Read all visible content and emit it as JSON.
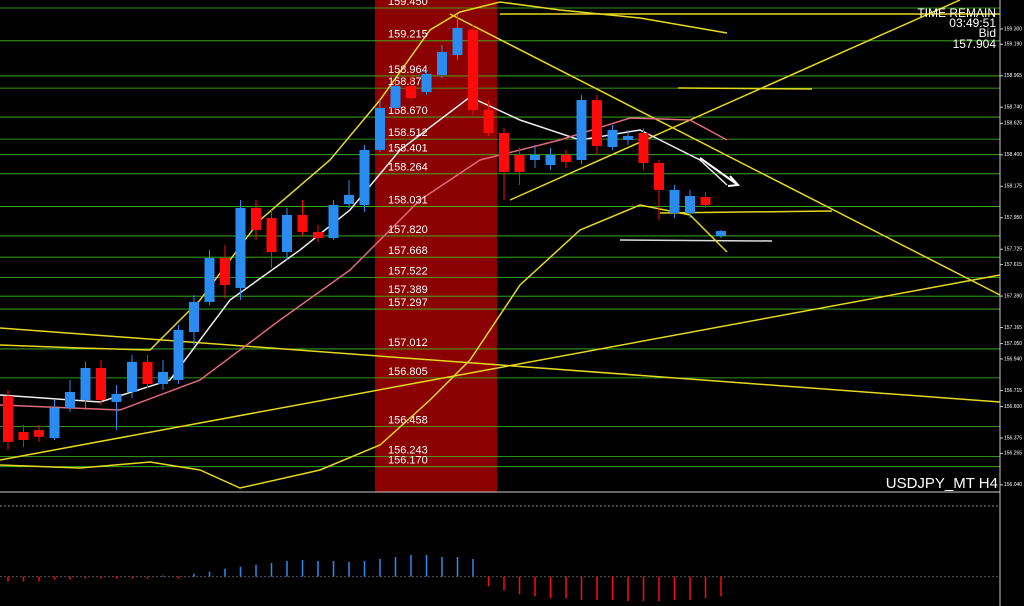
{
  "chart_data": {
    "type": "candlestick",
    "symbol_label": "USDJPY_MT H4",
    "info": [
      "TIME REMAIN",
      "03:49:51",
      "Bid",
      "157.904"
    ],
    "colors": {
      "up": "#2a8cf0",
      "down": "#ff0a0a",
      "level": "#3fbf1f"
    },
    "ylim": [
      155.989,
      159.507
    ],
    "yticks": [
      {
        "value": 159.3,
        "label": "159.300"
      },
      {
        "value": 159.19,
        "label": "159.190"
      },
      {
        "value": 158.965,
        "label": "158.965"
      },
      {
        "value": 158.74,
        "label": "158.740"
      },
      {
        "value": 158.625,
        "label": "158.625"
      },
      {
        "value": 158.4,
        "label": "158.400"
      },
      {
        "value": 158.175,
        "label": "158.175"
      },
      {
        "value": 157.95,
        "label": "157.950"
      },
      {
        "value": 157.725,
        "label": "157.725"
      },
      {
        "value": 157.615,
        "label": "157.615"
      },
      {
        "value": 157.39,
        "label": "157.390"
      },
      {
        "value": 157.165,
        "label": "157.165"
      },
      {
        "value": 157.05,
        "label": "157.050"
      },
      {
        "value": 156.94,
        "label": "156.940"
      },
      {
        "value": 156.715,
        "label": "156.715"
      },
      {
        "value": 156.6,
        "label": "156.600"
      },
      {
        "value": 156.375,
        "label": "156.375"
      },
      {
        "value": 156.265,
        "label": "156.265"
      },
      {
        "value": 156.04,
        "label": "156.040"
      }
    ],
    "levels": [
      {
        "value": 159.45,
        "label": "159.450"
      },
      {
        "value": 159.215,
        "label": "159.215"
      },
      {
        "value": 158.964,
        "label": "158.964"
      },
      {
        "value": 158.877,
        "label": "158.877"
      },
      {
        "value": 158.67,
        "label": "158.670"
      },
      {
        "value": 158.512,
        "label": "158.512"
      },
      {
        "value": 158.401,
        "label": "158.401"
      },
      {
        "value": 158.264,
        "label": "158.264"
      },
      {
        "value": 158.031,
        "label": "158.031"
      },
      {
        "value": 157.82,
        "label": "157.820"
      },
      {
        "value": 157.668,
        "label": "157.668"
      },
      {
        "value": 157.522,
        "label": "157.522"
      },
      {
        "value": 157.389,
        "label": "157.389"
      },
      {
        "value": 157.297,
        "label": "157.297"
      },
      {
        "value": 157.012,
        "label": "157.012"
      },
      {
        "value": 156.805,
        "label": "156.805"
      },
      {
        "value": 156.458,
        "label": "156.458"
      },
      {
        "value": 156.243,
        "label": "156.243"
      },
      {
        "value": 156.17,
        "label": "156.170"
      }
    ],
    "open": [
      156.676,
      156.418,
      156.432,
      156.375,
      156.59,
      156.647,
      156.876,
      156.633,
      156.704,
      156.919,
      156.761,
      156.79,
      157.133,
      157.348,
      157.662,
      157.448,
      158.02,
      157.948,
      157.705,
      157.97,
      157.848,
      157.805,
      158.048,
      158.041,
      158.435,
      158.735,
      158.892,
      158.849,
      158.971,
      159.114,
      159.293,
      158.721,
      158.556,
      158.399,
      158.363,
      158.327,
      158.399,
      158.363,
      158.792,
      158.456,
      158.506,
      158.556,
      158.342,
      157.984,
      157.984,
      158.098,
      157.82
    ],
    "high": [
      156.719,
      156.468,
      156.468,
      156.647,
      156.79,
      156.919,
      156.933,
      156.754,
      156.969,
      156.969,
      156.933,
      157.183,
      157.398,
      157.72,
      157.755,
      158.077,
      158.077,
      158.006,
      158.02,
      158.077,
      157.898,
      158.077,
      158.22,
      158.47,
      158.792,
      158.935,
      158.971,
      159.007,
      159.185,
      159.4,
      159.328,
      158.792,
      158.592,
      158.449,
      158.47,
      158.449,
      158.435,
      158.828,
      158.828,
      158.613,
      158.578,
      158.592,
      158.363,
      158.184,
      158.149,
      158.134,
      157.863
    ],
    "low": [
      156.29,
      156.311,
      156.347,
      156.361,
      156.561,
      156.576,
      156.611,
      156.432,
      156.661,
      156.733,
      156.719,
      156.761,
      157.04,
      157.326,
      157.376,
      157.362,
      157.791,
      157.591,
      157.648,
      157.82,
      157.777,
      157.791,
      158.02,
      157.991,
      158.42,
      158.706,
      158.792,
      158.828,
      158.949,
      159.078,
      158.685,
      158.535,
      158.077,
      158.184,
      158.306,
      158.292,
      158.306,
      158.334,
      158.399,
      158.435,
      158.47,
      158.292,
      157.934,
      157.948,
      157.948,
      158.02,
      157.805
    ],
    "close": [
      156.347,
      156.361,
      156.383,
      156.59,
      156.704,
      156.876,
      156.647,
      156.69,
      156.919,
      156.761,
      156.847,
      157.148,
      157.348,
      157.662,
      157.469,
      158.02,
      157.863,
      157.705,
      157.97,
      157.848,
      157.805,
      158.041,
      158.113,
      158.435,
      158.735,
      158.892,
      158.806,
      158.978,
      159.135,
      159.307,
      158.721,
      158.556,
      158.277,
      158.277,
      158.399,
      158.399,
      158.349,
      158.792,
      158.463,
      158.578,
      158.535,
      158.342,
      158.149,
      158.149,
      158.106,
      158.041,
      157.855
    ],
    "indicator": {
      "ylim": [
        -30,
        70
      ],
      "values": [
        -5,
        -5,
        -5,
        -3,
        -3,
        -2,
        -2,
        -2,
        -2,
        -2,
        1,
        -2,
        3,
        5,
        8,
        10,
        12,
        14,
        16,
        17,
        16,
        16,
        15,
        16,
        18,
        20,
        22,
        22,
        20,
        20,
        18,
        -10,
        -14,
        -18,
        -20,
        -22,
        -22,
        -24,
        -24,
        -24,
        -25,
        -25,
        -25,
        -24,
        -24,
        -22,
        -20
      ]
    }
  }
}
